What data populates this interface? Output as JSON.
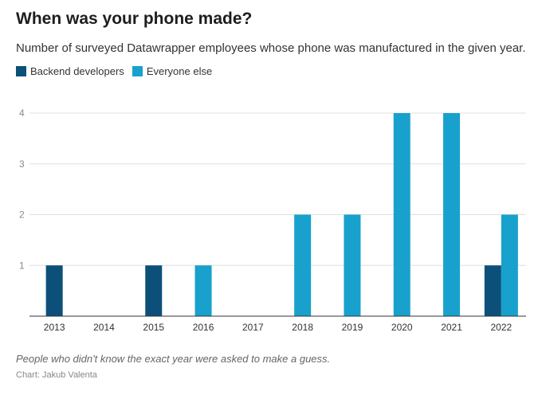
{
  "title": "When was your phone made?",
  "subtitle": "Number of surveyed Datawrapper employees whose phone was manufactured in the given year.",
  "note": "People who didn't know the exact year were asked to make a guess.",
  "credit": "Chart: Jakub Valenta",
  "colors": {
    "backend": "#0c5079",
    "everyone": "#18a1cd"
  },
  "chart_data": {
    "type": "bar",
    "title": "When was your phone made?",
    "categories": [
      "2013",
      "2014",
      "2015",
      "2016",
      "2017",
      "2018",
      "2019",
      "2020",
      "2021",
      "2022"
    ],
    "series": [
      {
        "name": "Backend developers",
        "values": [
          1,
          0,
          1,
          0,
          0,
          0,
          0,
          0,
          0,
          1
        ]
      },
      {
        "name": "Everyone else",
        "values": [
          0,
          0,
          0,
          1,
          0,
          2,
          2,
          4,
          4,
          2
        ]
      }
    ],
    "yticks": [
      1,
      2,
      3,
      4
    ],
    "ylim": [
      0,
      4
    ],
    "grid": true,
    "legend": "top-left"
  }
}
